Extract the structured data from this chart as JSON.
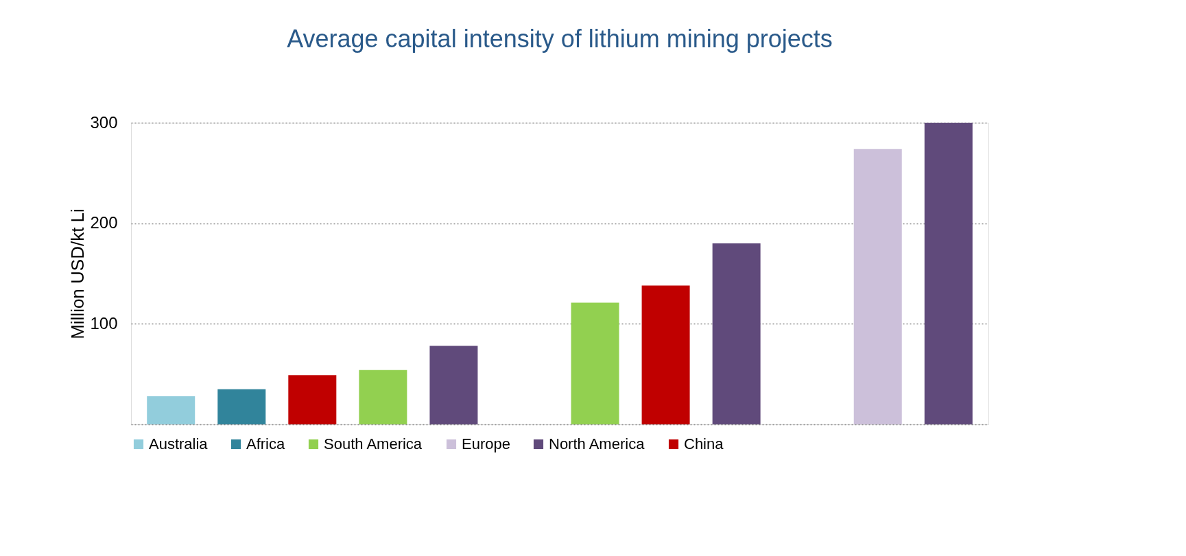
{
  "chart_data": {
    "type": "bar",
    "title": "Average capital intensity of lithium mining projects",
    "ylabel": "Million USD/kt Li",
    "categories": [
      null,
      null,
      null,
      null,
      null,
      null,
      null,
      null,
      null,
      null,
      null,
      null
    ],
    "series": [
      {
        "name": "Australia",
        "color": "#92cddc",
        "values": [
          28,
          null,
          null,
          null,
          null,
          null,
          null,
          null,
          null,
          null,
          null,
          null
        ]
      },
      {
        "name": "Africa",
        "color": "#31849b",
        "values": [
          null,
          35,
          null,
          null,
          null,
          null,
          null,
          null,
          null,
          null,
          null,
          null
        ]
      },
      {
        "name": "South America",
        "color": "#92d050",
        "values": [
          null,
          null,
          null,
          54,
          null,
          null,
          121,
          null,
          null,
          null,
          null,
          null
        ]
      },
      {
        "name": "Europe",
        "color": "#ccc0da",
        "values": [
          null,
          null,
          null,
          null,
          null,
          null,
          null,
          null,
          null,
          null,
          274,
          null
        ]
      },
      {
        "name": "North America",
        "color": "#604a7b",
        "values": [
          null,
          null,
          null,
          null,
          78,
          null,
          null,
          null,
          180,
          null,
          null,
          300
        ]
      },
      {
        "name": "China",
        "color": "#c00000",
        "values": [
          null,
          null,
          49,
          null,
          null,
          null,
          null,
          138,
          null,
          null,
          null,
          null
        ]
      }
    ],
    "ylim": [
      0,
      300
    ],
    "yticks": [
      {
        "value": 0,
        "label": null
      },
      100,
      200,
      300
    ],
    "grid": "y",
    "legend": "bottom",
    "tick_labels": "y"
  }
}
